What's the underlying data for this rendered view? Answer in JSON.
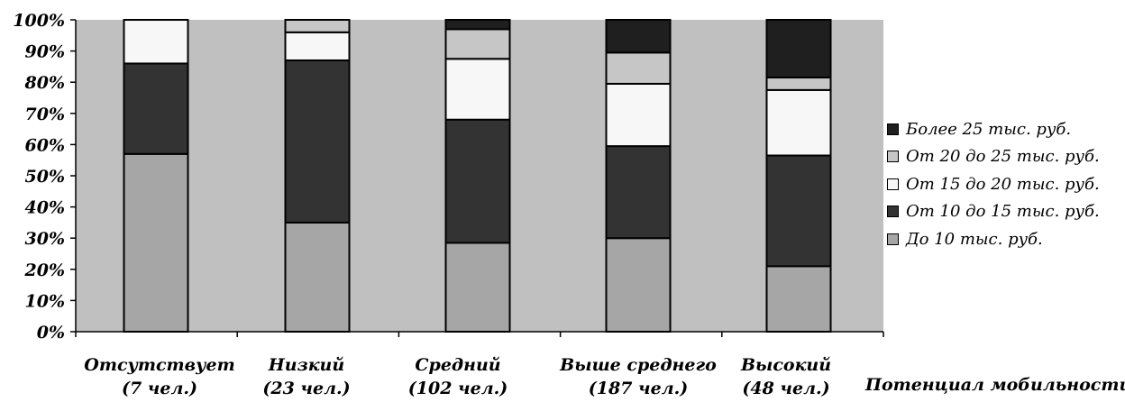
{
  "chart_data": {
    "type": "bar",
    "stacked": true,
    "percent": true,
    "title": "",
    "xlabel": "Потенциал мобильности",
    "ylabel": "",
    "ylim": [
      0,
      100
    ],
    "yticks": [
      "0%",
      "10%",
      "20%",
      "30%",
      "40%",
      "50%",
      "60%",
      "70%",
      "80%",
      "90%",
      "100%"
    ],
    "grid": false,
    "plot_background": "#c0c0c0",
    "legend_position": "right",
    "categories": [
      {
        "name": "Отсутствует",
        "count": "(7 чел.)"
      },
      {
        "name": "Низкий",
        "count": "(23 чел.)"
      },
      {
        "name": "Средний",
        "count": "(102 чел.)"
      },
      {
        "name": "Выше среднего",
        "count": "(187 чел.)"
      },
      {
        "name": "Высокий",
        "count": "(48 чел.)"
      }
    ],
    "series": [
      {
        "name": "До 10 тыс. руб.",
        "color": "#a6a6a6",
        "values": [
          57,
          35,
          28.5,
          30,
          21
        ]
      },
      {
        "name": "От 10 до 15 тыс. руб.",
        "color": "#333333",
        "values": [
          29,
          52,
          39.5,
          29.5,
          35.5
        ]
      },
      {
        "name": "От 15 до 20 тыс. руб.",
        "color": "#f7f7f7",
        "values": [
          14,
          9,
          19.5,
          20,
          21
        ]
      },
      {
        "name": "От 20 до 25 тыс. руб.",
        "color": "#c6c6c6",
        "values": [
          0,
          4,
          9.5,
          10,
          4
        ]
      },
      {
        "name": "Более 25 тыс. руб.",
        "color": "#1f1f1f",
        "values": [
          0,
          0,
          3,
          10.5,
          18.5
        ]
      }
    ],
    "legend_order": [
      4,
      3,
      2,
      1,
      0
    ]
  }
}
